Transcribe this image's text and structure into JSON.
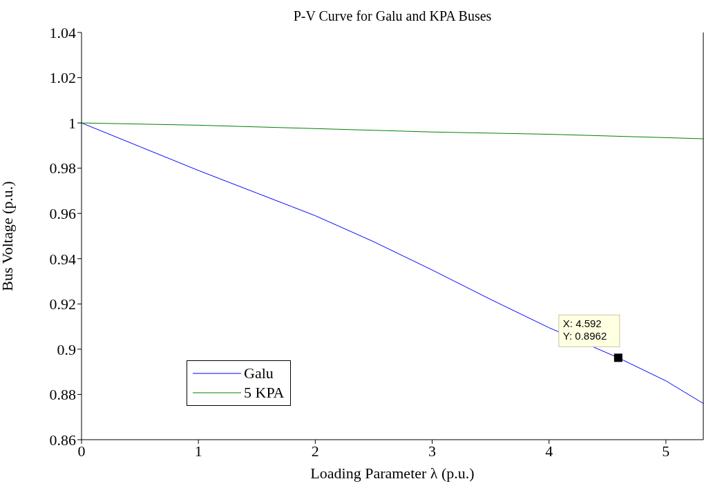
{
  "chart_data": {
    "type": "line",
    "title": "P-V Curve for Galu and KPA Buses",
    "xlabel": "Loading Parameter λ (p.u.)",
    "ylabel": "Bus Voltage (p.u.)",
    "xlim": [
      0,
      5.32
    ],
    "xticks": [
      0,
      1,
      2,
      3,
      4,
      5
    ],
    "ylim": [
      0.86,
      1.04
    ],
    "yticks": [
      0.86,
      0.88,
      0.9,
      0.92,
      0.94,
      0.96,
      0.98,
      1,
      1.02,
      1.04
    ],
    "grid": false,
    "legend": "bottom left",
    "marker": "none",
    "line_style": "solid",
    "series": [
      {
        "name": "Galu",
        "color": "#0000ff",
        "x": [
          0,
          0.5,
          1,
          1.5,
          1.8,
          2,
          2.5,
          3,
          3.5,
          4,
          4.592,
          5,
          5.32
        ],
        "values": [
          1,
          0.9895,
          0.979,
          0.969,
          0.963,
          0.959,
          0.9475,
          0.935,
          0.922,
          0.9095,
          0.8962,
          0.886,
          0.876
        ]
      },
      {
        "name": "5 KPA",
        "color": "#008000",
        "x": [
          0,
          1,
          2,
          3,
          4,
          5,
          5.32
        ],
        "values": [
          1,
          0.999,
          0.9975,
          0.996,
          0.995,
          0.9935,
          0.993
        ]
      }
    ],
    "annotations": [
      {
        "text": "X: 4.592\nY: 0.8962",
        "x": 4.592,
        "y": 0.8962
      }
    ]
  }
}
